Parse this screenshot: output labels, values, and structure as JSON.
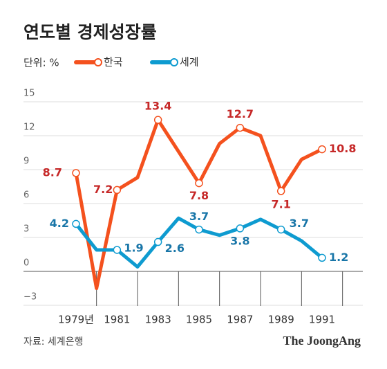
{
  "chart_data": {
    "type": "line",
    "title": "연도별 경제성장률",
    "unit_label": "단위: %",
    "x": [
      1979,
      1980,
      1981,
      1982,
      1983,
      1984,
      1985,
      1986,
      1987,
      1988,
      1989,
      1990,
      1991
    ],
    "series": [
      {
        "name": "한국",
        "color": "#f4511e",
        "label_color": "#c62828",
        "values": [
          8.7,
          -1.5,
          7.2,
          8.3,
          13.4,
          10.6,
          7.8,
          11.3,
          12.7,
          12.0,
          7.1,
          9.9,
          10.8
        ]
      },
      {
        "name": "세계",
        "color": "#0e9bd0",
        "label_color": "#1976a8",
        "values": [
          4.2,
          1.9,
          1.9,
          0.4,
          2.6,
          4.7,
          3.7,
          3.2,
          3.8,
          4.6,
          3.7,
          2.7,
          1.2
        ]
      }
    ],
    "xlim": [
      1979,
      1991
    ],
    "xticks": [
      {
        "value": 1979,
        "label": "1979년"
      },
      1981,
      1983,
      1985,
      1987,
      1989,
      1991
    ],
    "ylim": [
      -3,
      15
    ],
    "yticks": [
      15,
      12,
      9,
      6,
      3,
      0,
      {
        "value": -3,
        "label": "−3"
      }
    ],
    "grid": true,
    "source": "자료: 세계은행",
    "brand": "The JoongAng"
  }
}
